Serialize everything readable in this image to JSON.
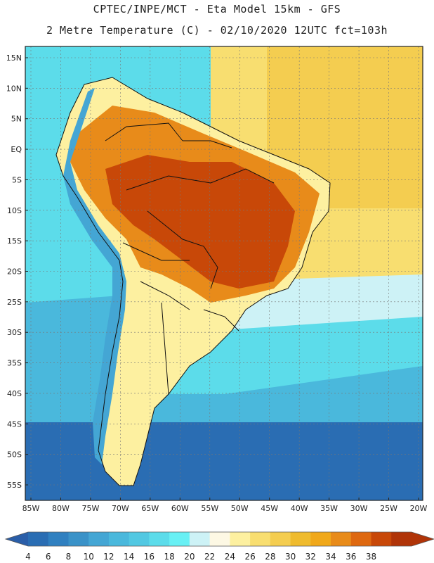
{
  "title_line1": "CPTEC/INPE/MCT  -  Eta Model 15km - GFS",
  "title_line2": "2 Metre Temperature (C) - 02/10/2020 12UTC fct=103h",
  "lat_labels": [
    "15N",
    "10N",
    "5N",
    "EQ",
    "5S",
    "10S",
    "15S",
    "20S",
    "25S",
    "30S",
    "35S",
    "40S",
    "45S",
    "50S",
    "55S"
  ],
  "lon_labels": [
    "85W",
    "80W",
    "75W",
    "70W",
    "65W",
    "60W",
    "55W",
    "50W",
    "45W",
    "40W",
    "35W",
    "30W",
    "25W",
    "20W"
  ],
  "colorbar": {
    "values": [
      "4",
      "6",
      "8",
      "10",
      "12",
      "14",
      "16",
      "18",
      "20",
      "22",
      "24",
      "26",
      "28",
      "30",
      "32",
      "34",
      "36",
      "38"
    ],
    "colors": [
      "#2a6db3",
      "#3080c0",
      "#3a92c8",
      "#44a6d4",
      "#4ab8dc",
      "#52c8e2",
      "#5cdcea",
      "#68f0f4",
      "#cdf2f6",
      "#fdf8e4",
      "#fdf0a0",
      "#f8de70",
      "#f4cd50",
      "#efbb2e",
      "#f0a81a",
      "#e88b1a",
      "#de6810",
      "#c84808",
      "#b03408"
    ],
    "min_arrow_color": "#2a5ea8",
    "max_arrow_color": "#b03408"
  },
  "map_colors": {
    "ocean_deep": "#2a6db3",
    "ocean_mid": "#3a92c8",
    "ocean_cool": "#4ab8dc",
    "ocean_warm": "#5cdcea",
    "ocean_pale": "#cdf2f6",
    "atlantic_warm": "#f8de70",
    "atlantic_hot": "#f4cd50",
    "land_hot": "#c84808",
    "land_warm": "#e88b1a",
    "land_mild": "#fdf0a0",
    "andes": "#44a6d4"
  }
}
